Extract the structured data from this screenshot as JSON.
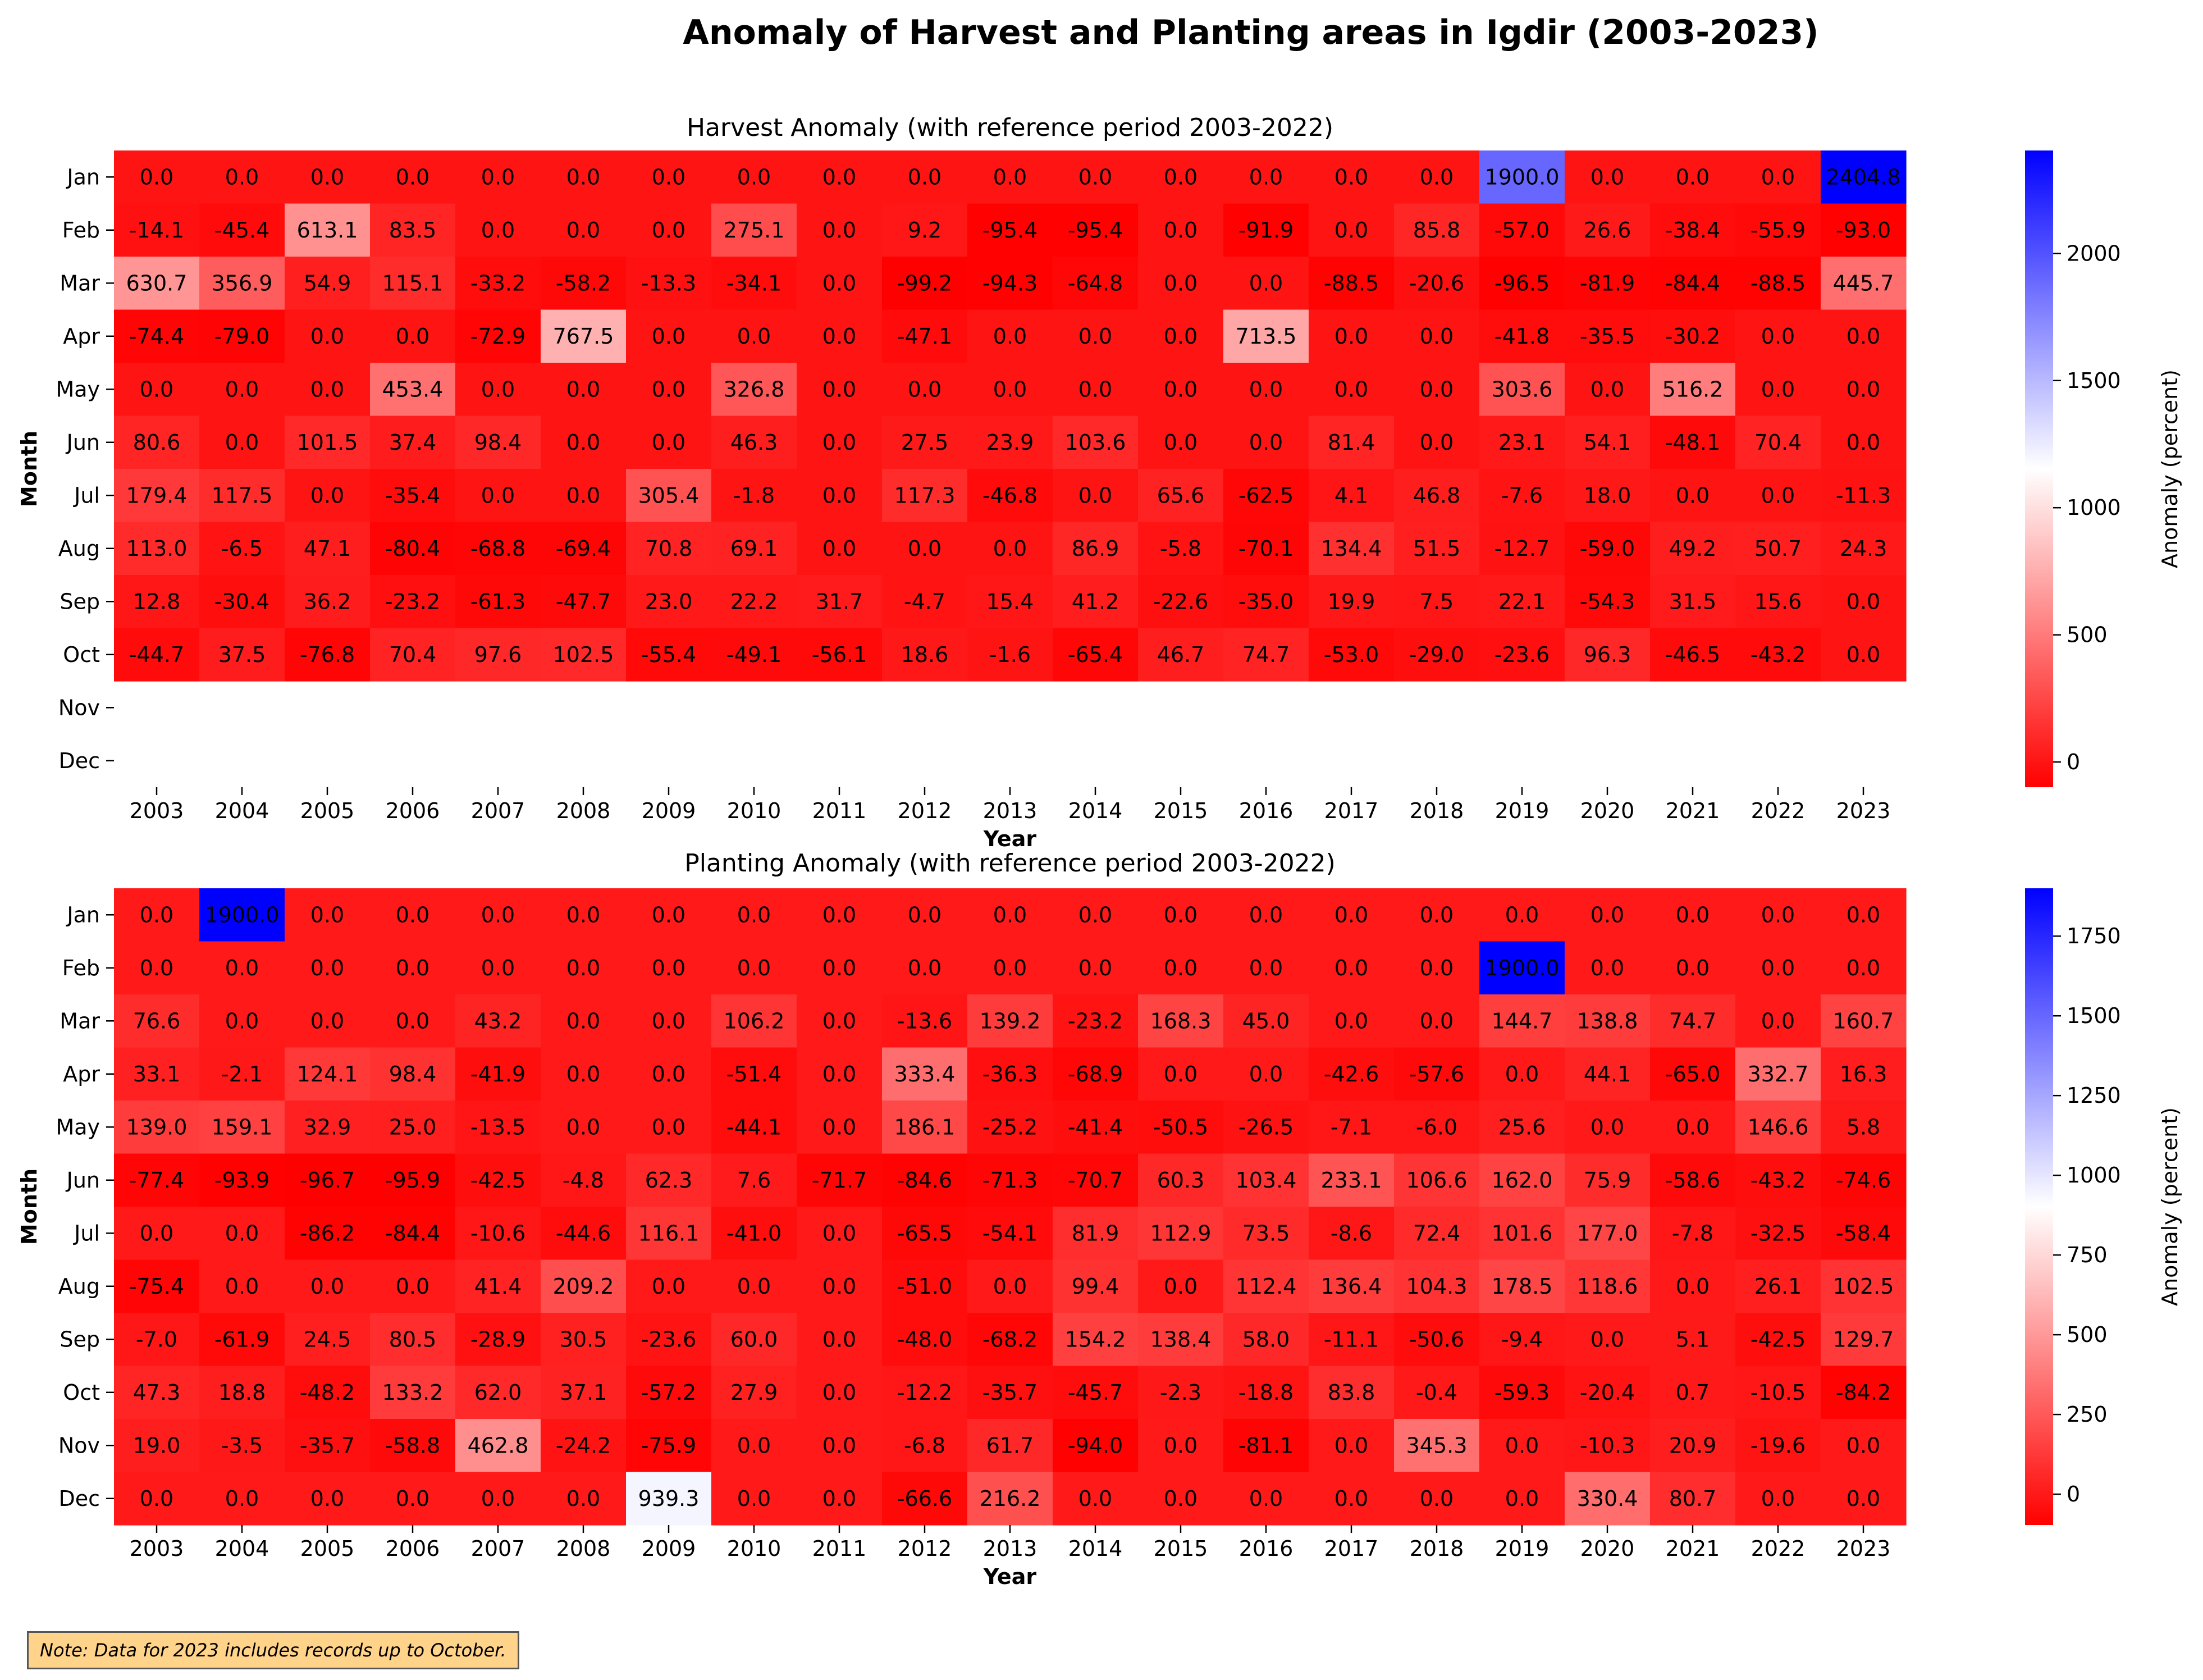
{
  "title": "Anomaly of Harvest and Planting areas in Igdir (2003-2023)",
  "note": "Note: Data for 2023 includes records up to October.",
  "chart_data": [
    {
      "type": "heatmap",
      "title": "Harvest Anomaly (with reference period 2003-2022)",
      "xlabel": "Year",
      "ylabel": "Month",
      "colorbar_label": "Anomaly (percent)",
      "colorbar_ticks": [
        0,
        500,
        1000,
        1500,
        2000
      ],
      "vmin": -99.2,
      "vmax": 2404.8,
      "colors": {
        "negative": "#ff0000",
        "center": "#ffffff",
        "positive": "#0000ff"
      },
      "years": [
        "2003",
        "2004",
        "2005",
        "2006",
        "2007",
        "2008",
        "2009",
        "2010",
        "2011",
        "2012",
        "2013",
        "2014",
        "2015",
        "2016",
        "2017",
        "2018",
        "2019",
        "2020",
        "2021",
        "2022",
        "2023"
      ],
      "months": [
        "Jan",
        "Feb",
        "Mar",
        "Apr",
        "May",
        "Jun",
        "Jul",
        "Aug",
        "Sep",
        "Oct",
        "Nov",
        "Dec"
      ],
      "values": [
        [
          0.0,
          0.0,
          0.0,
          0.0,
          0.0,
          0.0,
          0.0,
          0.0,
          0.0,
          0.0,
          0.0,
          0.0,
          0.0,
          0.0,
          0.0,
          0.0,
          1900.0,
          0.0,
          0.0,
          0.0,
          2404.8
        ],
        [
          -14.1,
          -45.4,
          613.1,
          83.5,
          0.0,
          0.0,
          0.0,
          275.1,
          0.0,
          9.2,
          -95.4,
          -95.4,
          0.0,
          -91.9,
          0.0,
          85.8,
          -57.0,
          26.6,
          -38.4,
          -55.9,
          -93.0
        ],
        [
          630.7,
          356.9,
          54.9,
          115.1,
          -33.2,
          -58.2,
          -13.3,
          -34.1,
          0.0,
          -99.2,
          -94.3,
          -64.8,
          0.0,
          0.0,
          -88.5,
          -20.6,
          -96.5,
          -81.9,
          -84.4,
          -88.5,
          445.7
        ],
        [
          -74.4,
          -79.0,
          0.0,
          0.0,
          -72.9,
          767.5,
          0.0,
          0.0,
          0.0,
          -47.1,
          0.0,
          0.0,
          0.0,
          713.5,
          0.0,
          0.0,
          -41.8,
          -35.5,
          -30.2,
          0.0,
          0.0
        ],
        [
          0.0,
          0.0,
          0.0,
          453.4,
          0.0,
          0.0,
          0.0,
          326.8,
          0.0,
          0.0,
          0.0,
          0.0,
          0.0,
          0.0,
          0.0,
          0.0,
          303.6,
          0.0,
          516.2,
          0.0,
          0.0
        ],
        [
          80.6,
          0.0,
          101.5,
          37.4,
          98.4,
          0.0,
          0.0,
          46.3,
          0.0,
          27.5,
          23.9,
          103.6,
          0.0,
          0.0,
          81.4,
          0.0,
          23.1,
          54.1,
          -48.1,
          70.4,
          0.0
        ],
        [
          179.4,
          117.5,
          0.0,
          -35.4,
          0.0,
          0.0,
          305.4,
          -1.8,
          0.0,
          117.3,
          -46.8,
          0.0,
          65.6,
          -62.5,
          4.1,
          46.8,
          -7.6,
          18.0,
          0.0,
          0.0,
          -11.3
        ],
        [
          113.0,
          -6.5,
          47.1,
          -80.4,
          -68.8,
          -69.4,
          70.8,
          69.1,
          0.0,
          0.0,
          0.0,
          86.9,
          -5.8,
          -70.1,
          134.4,
          51.5,
          -12.7,
          -59.0,
          49.2,
          50.7,
          24.3
        ],
        [
          12.8,
          -30.4,
          36.2,
          -23.2,
          -61.3,
          -47.7,
          23.0,
          22.2,
          31.7,
          -4.7,
          15.4,
          41.2,
          -22.6,
          -35.0,
          19.9,
          7.5,
          22.1,
          -54.3,
          31.5,
          15.6,
          0.0
        ],
        [
          -44.7,
          37.5,
          -76.8,
          70.4,
          97.6,
          102.5,
          -55.4,
          -49.1,
          -56.1,
          18.6,
          -1.6,
          -65.4,
          46.7,
          74.7,
          -53.0,
          -29.0,
          -23.6,
          96.3,
          -46.5,
          -43.2,
          0.0
        ],
        [
          null,
          null,
          null,
          null,
          null,
          null,
          null,
          null,
          null,
          null,
          null,
          null,
          null,
          null,
          null,
          null,
          null,
          null,
          null,
          null,
          null
        ],
        [
          null,
          null,
          null,
          null,
          null,
          null,
          null,
          null,
          null,
          null,
          null,
          null,
          null,
          null,
          null,
          null,
          null,
          null,
          null,
          null,
          null
        ]
      ]
    },
    {
      "type": "heatmap",
      "title": "Planting Anomaly (with reference period 2003-2022)",
      "xlabel": "Year",
      "ylabel": "Month",
      "colorbar_label": "Anomaly (percent)",
      "colorbar_ticks": [
        0,
        250,
        500,
        750,
        1000,
        1250,
        1500,
        1750
      ],
      "vmin": -96.7,
      "vmax": 1900.0,
      "colors": {
        "negative": "#ff0000",
        "center": "#ffffff",
        "positive": "#0000ff"
      },
      "years": [
        "2003",
        "2004",
        "2005",
        "2006",
        "2007",
        "2008",
        "2009",
        "2010",
        "2011",
        "2012",
        "2013",
        "2014",
        "2015",
        "2016",
        "2017",
        "2018",
        "2019",
        "2020",
        "2021",
        "2022",
        "2023"
      ],
      "months": [
        "Jan",
        "Feb",
        "Mar",
        "Apr",
        "May",
        "Jun",
        "Jul",
        "Aug",
        "Sep",
        "Oct",
        "Nov",
        "Dec"
      ],
      "values": [
        [
          0.0,
          1900.0,
          0.0,
          0.0,
          0.0,
          0.0,
          0.0,
          0.0,
          0.0,
          0.0,
          0.0,
          0.0,
          0.0,
          0.0,
          0.0,
          0.0,
          0.0,
          0.0,
          0.0,
          0.0,
          0.0
        ],
        [
          0.0,
          0.0,
          0.0,
          0.0,
          0.0,
          0.0,
          0.0,
          0.0,
          0.0,
          0.0,
          0.0,
          0.0,
          0.0,
          0.0,
          0.0,
          0.0,
          1900.0,
          0.0,
          0.0,
          0.0,
          0.0
        ],
        [
          76.6,
          0.0,
          0.0,
          0.0,
          43.2,
          0.0,
          0.0,
          106.2,
          0.0,
          -13.6,
          139.2,
          -23.2,
          168.3,
          45.0,
          0.0,
          0.0,
          144.7,
          138.8,
          74.7,
          0.0,
          160.7
        ],
        [
          33.1,
          -2.1,
          124.1,
          98.4,
          -41.9,
          0.0,
          0.0,
          -51.4,
          0.0,
          333.4,
          -36.3,
          -68.9,
          0.0,
          0.0,
          -42.6,
          -57.6,
          0.0,
          44.1,
          -65.0,
          332.7,
          16.3
        ],
        [
          139.0,
          159.1,
          32.9,
          25.0,
          -13.5,
          0.0,
          0.0,
          -44.1,
          0.0,
          186.1,
          -25.2,
          -41.4,
          -50.5,
          -26.5,
          -7.1,
          -6.0,
          25.6,
          0.0,
          0.0,
          146.6,
          5.8
        ],
        [
          -77.4,
          -93.9,
          -96.7,
          -95.9,
          -42.5,
          -4.8,
          62.3,
          7.6,
          -71.7,
          -84.6,
          -71.3,
          -70.7,
          60.3,
          103.4,
          233.1,
          106.6,
          162.0,
          75.9,
          -58.6,
          -43.2,
          -74.6
        ],
        [
          0.0,
          0.0,
          -86.2,
          -84.4,
          -10.6,
          -44.6,
          116.1,
          -41.0,
          0.0,
          -65.5,
          -54.1,
          81.9,
          112.9,
          73.5,
          -8.6,
          72.4,
          101.6,
          177.0,
          -7.8,
          -32.5,
          -58.4
        ],
        [
          -75.4,
          0.0,
          0.0,
          0.0,
          41.4,
          209.2,
          0.0,
          0.0,
          0.0,
          -51.0,
          0.0,
          99.4,
          0.0,
          112.4,
          136.4,
          104.3,
          178.5,
          118.6,
          0.0,
          26.1,
          102.5
        ],
        [
          -7.0,
          -61.9,
          24.5,
          80.5,
          -28.9,
          30.5,
          -23.6,
          60.0,
          0.0,
          -48.0,
          -68.2,
          154.2,
          138.4,
          58.0,
          -11.1,
          -50.6,
          -9.4,
          0.0,
          5.1,
          -42.5,
          129.7
        ],
        [
          47.3,
          18.8,
          -48.2,
          133.2,
          62.0,
          37.1,
          -57.2,
          27.9,
          0.0,
          -12.2,
          -35.7,
          -45.7,
          -2.3,
          -18.8,
          83.8,
          -0.4,
          -59.3,
          -20.4,
          0.7,
          -10.5,
          -84.2
        ],
        [
          19.0,
          -3.5,
          -35.7,
          -58.8,
          462.8,
          -24.2,
          -75.9,
          0.0,
          0.0,
          -6.8,
          61.7,
          -94.0,
          0.0,
          -81.1,
          0.0,
          345.3,
          0.0,
          -10.3,
          20.9,
          -19.6,
          0.0
        ],
        [
          0.0,
          0.0,
          0.0,
          0.0,
          0.0,
          0.0,
          939.3,
          0.0,
          0.0,
          -66.6,
          216.2,
          0.0,
          0.0,
          0.0,
          0.0,
          0.0,
          0.0,
          330.4,
          80.7,
          0.0,
          0.0
        ]
      ]
    }
  ]
}
